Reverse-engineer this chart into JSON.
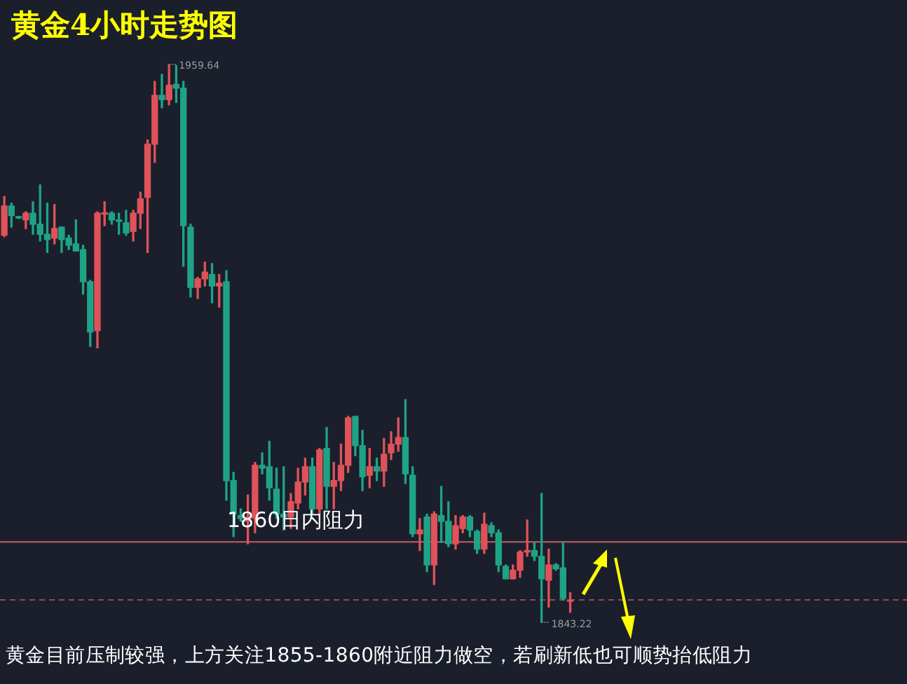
{
  "chart_data": {
    "type": "candlestick",
    "title": "黄金4小时走势图",
    "categories": [
      null,
      null,
      null,
      null,
      null,
      null,
      null,
      null,
      null,
      null,
      null,
      null,
      null,
      null,
      null,
      null,
      null,
      null,
      null,
      null,
      null,
      null,
      null,
      null,
      null,
      null,
      null,
      null,
      null,
      null,
      null,
      null,
      null,
      null,
      null,
      null,
      null,
      null,
      null,
      null,
      null,
      null,
      null,
      null,
      null,
      null,
      null,
      null,
      null,
      null,
      null,
      null,
      null,
      null,
      null,
      null,
      null,
      null,
      null,
      null,
      null,
      null,
      null,
      null,
      null,
      null,
      null,
      null,
      null,
      null,
      null,
      null,
      null,
      null,
      null,
      null,
      null,
      null,
      null,
      null
    ],
    "ohlc": [
      [
        1924.0,
        1932.1,
        1923.7,
        1930.1
      ],
      [
        1930.1,
        1930.7,
        1925.7,
        1928.1
      ],
      [
        1927.8,
        1927.9,
        1927.5,
        1927.6
      ],
      [
        1927.2,
        1928.9,
        1925.4,
        1928.6
      ],
      [
        1928.6,
        1931.0,
        1924.2,
        1926.3
      ],
      [
        1926.3,
        1934.5,
        1922.8,
        1924.2
      ],
      [
        1924.2,
        1930.7,
        1920.4,
        1923.1
      ],
      [
        1923.4,
        1930.4,
        1922.2,
        1925.4
      ],
      [
        1925.7,
        1925.7,
        1920.4,
        1923.1
      ],
      [
        1923.4,
        1924.0,
        1921.0,
        1921.9
      ],
      [
        1922.2,
        1927.2,
        1920.7,
        1920.7
      ],
      [
        1921.0,
        1921.9,
        1911.7,
        1914.3
      ],
      [
        1914.3,
        1914.6,
        1900.8,
        1903.8
      ],
      [
        1904.1,
        1928.9,
        1900.5,
        1928.6
      ],
      [
        1928.4,
        1931.0,
        1926.0,
        1928.6
      ],
      [
        1928.6,
        1928.9,
        1926.3,
        1927.2
      ],
      [
        1927.2,
        1928.6,
        1924.2,
        1926.9
      ],
      [
        1926.6,
        1929.2,
        1924.0,
        1924.5
      ],
      [
        1924.8,
        1929.2,
        1922.8,
        1928.6
      ],
      [
        1928.6,
        1933.0,
        1925.4,
        1931.6
      ],
      [
        1931.9,
        1943.9,
        1920.4,
        1943.0
      ],
      [
        1943.0,
        1956.1,
        1939.2,
        1953.2
      ],
      [
        1953.2,
        1957.6,
        1950.6,
        1952.3
      ],
      [
        1952.3,
        1959.64,
        1951.2,
        1955.3
      ],
      [
        1955.5,
        1959.4,
        1951.7,
        1954.7
      ],
      [
        1954.7,
        1956.1,
        1917.5,
        1926.0
      ],
      [
        1925.7,
        1926.3,
        1911.1,
        1913.1
      ],
      [
        1913.1,
        1915.2,
        1910.8,
        1914.9
      ],
      [
        1914.9,
        1918.4,
        1913.4,
        1916.3
      ],
      [
        1915.8,
        1918.1,
        1909.9,
        1913.4
      ],
      [
        1913.4,
        1915.8,
        1909.0,
        1914.0
      ],
      [
        1914.3,
        1916.6,
        1868.7,
        1872.8
      ],
      [
        1872.8,
        1874.5,
        1861.1,
        1865.8
      ],
      [
        1865.5,
        1866.9,
        1864.3,
        1864.9
      ],
      [
        1864.3,
        1869.8,
        1859.6,
        1865.2
      ],
      [
        1864.9,
        1876.6,
        1861.9,
        1876.0
      ],
      [
        1876.0,
        1878.6,
        1874.2,
        1875.4
      ],
      [
        1875.7,
        1881.0,
        1868.7,
        1871.3
      ],
      [
        1871.0,
        1875.4,
        1864.9,
        1865.8
      ],
      [
        1865.8,
        1875.7,
        1862.5,
        1865.2
      ],
      [
        1865.2,
        1870.1,
        1862.8,
        1868.4
      ],
      [
        1868.1,
        1875.4,
        1866.9,
        1872.5
      ],
      [
        1872.5,
        1877.5,
        1869.8,
        1875.7
      ],
      [
        1875.7,
        1877.5,
        1865.8,
        1866.9
      ],
      [
        1866.9,
        1879.5,
        1865.8,
        1879.2
      ],
      [
        1879.5,
        1883.9,
        1866.9,
        1871.6
      ],
      [
        1871.6,
        1876.6,
        1866.9,
        1872.8
      ],
      [
        1872.8,
        1880.4,
        1870.7,
        1876.0
      ],
      [
        1876.0,
        1886.2,
        1874.5,
        1885.9
      ],
      [
        1886.2,
        1886.2,
        1878.0,
        1880.1
      ],
      [
        1880.1,
        1883.3,
        1870.7,
        1873.6
      ],
      [
        1873.9,
        1879.5,
        1871.3,
        1875.7
      ],
      [
        1875.7,
        1877.5,
        1872.8,
        1874.8
      ],
      [
        1874.8,
        1881.6,
        1871.6,
        1878.3
      ],
      [
        1878.6,
        1883.0,
        1877.2,
        1880.4
      ],
      [
        1880.4,
        1885.9,
        1878.9,
        1881.8
      ],
      [
        1881.8,
        1889.7,
        1872.2,
        1874.2
      ],
      [
        1873.9,
        1875.7,
        1861.1,
        1861.7
      ],
      [
        1861.7,
        1864.9,
        1858.2,
        1862.5
      ],
      [
        1865.2,
        1865.8,
        1853.8,
        1855.2
      ],
      [
        1855.2,
        1866.3,
        1851.1,
        1865.8
      ],
      [
        1865.5,
        1871.6,
        1859.9,
        1864.3
      ],
      [
        1864.3,
        1868.4,
        1859.0,
        1859.6
      ],
      [
        1859.6,
        1865.5,
        1858.5,
        1863.4
      ],
      [
        1862.8,
        1865.5,
        1861.9,
        1865.2
      ],
      [
        1865.2,
        1865.5,
        1861.1,
        1862.5
      ],
      [
        1862.2,
        1862.5,
        1857.6,
        1858.5
      ],
      [
        1858.5,
        1866.0,
        1857.6,
        1863.7
      ],
      [
        1863.4,
        1864.0,
        1861.1,
        1861.9
      ],
      [
        1861.9,
        1862.5,
        1853.8,
        1855.2
      ],
      [
        1854.9,
        1855.2,
        1852.3,
        1852.3
      ],
      [
        1852.3,
        1855.2,
        1852.3,
        1854.1
      ],
      [
        1854.1,
        1858.2,
        1852.6,
        1857.9
      ],
      [
        1857.9,
        1864.6,
        1857.0,
        1858.2
      ],
      [
        1858.2,
        1859.9,
        1856.1,
        1857.0
      ],
      [
        1857.0,
        1870.1,
        1843.22,
        1852.3
      ],
      [
        1852.0,
        1858.5,
        1846.4,
        1855.2
      ],
      [
        1855.2,
        1855.5,
        1854.1,
        1854.4
      ],
      [
        1854.6,
        1859.9,
        1847.9,
        1848.2
      ],
      [
        1847.6,
        1849.4,
        1845.3,
        1847.9
      ]
    ],
    "colors": [
      "#e0525a",
      "#1fa386",
      "#1fa386",
      "#e0525a",
      "#1fa386",
      "#1fa386",
      "#1fa386",
      "#e0525a",
      "#1fa386",
      "#1fa386",
      "#1fa386",
      "#1fa386",
      "#1fa386",
      "#e0525a",
      "#e0525a",
      "#1fa386",
      "#1fa386",
      "#1fa386",
      "#e0525a",
      "#e0525a",
      "#e0525a",
      "#e0525a",
      "#1fa386",
      "#e0525a",
      "#1fa386",
      "#1fa386",
      "#1fa386",
      "#e0525a",
      "#e0525a",
      "#1fa386",
      "#e0525a",
      "#1fa386",
      "#1fa386",
      "#1fa386",
      "#e0525a",
      "#e0525a",
      "#1fa386",
      "#1fa386",
      "#1fa386",
      "#1fa386",
      "#e0525a",
      "#e0525a",
      "#e0525a",
      "#1fa386",
      "#e0525a",
      "#1fa386",
      "#e0525a",
      "#e0525a",
      "#e0525a",
      "#1fa386",
      "#1fa386",
      "#e0525a",
      "#1fa386",
      "#e0525a",
      "#e0525a",
      "#e0525a",
      "#1fa386",
      "#1fa386",
      "#e0525a",
      "#1fa386",
      "#e0525a",
      "#1fa386",
      "#1fa386",
      "#e0525a",
      "#e0525a",
      "#1fa386",
      "#1fa386",
      "#e0525a",
      "#1fa386",
      "#1fa386",
      "#1fa386",
      "#e0525a",
      "#e0525a",
      "#e0525a",
      "#1fa386",
      "#1fa386",
      "#e0525a",
      "#1fa386",
      "#1fa386",
      "#e0525a"
    ],
    "ref_lines": [
      {
        "axis": "y",
        "value": 1860,
        "label": "1860日内阻力",
        "color": "#c0606a",
        "line_style": "solid"
      },
      {
        "axis": "y",
        "value": 1847.9,
        "color": "#8a4d58",
        "line_style": "dashed"
      }
    ],
    "annotations": [
      "1959.64",
      "1843.22",
      "黄金目前压制较强，上方关注1855-1860附近阻力做空，若刷新低也可顺势抬低阻力"
    ]
  }
}
